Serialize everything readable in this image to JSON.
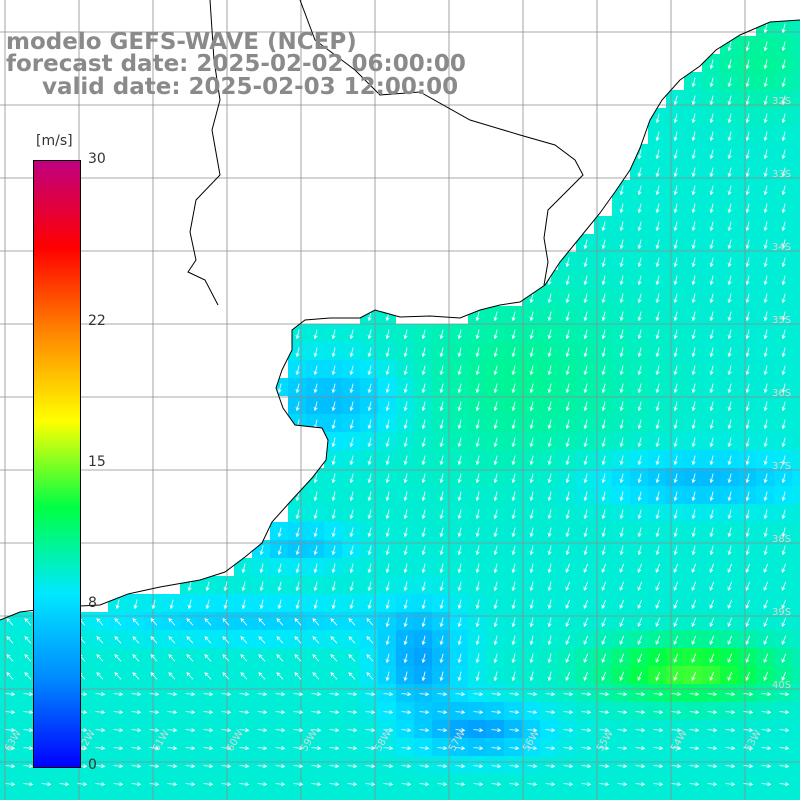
{
  "titles": {
    "line1": "modelo GEFS-WAVE (NCEP)",
    "line2": "forecast date: 2025-02-02 06:00:00",
    "line3": "valid date: 2025-02-03 12:00:00"
  },
  "colorbar": {
    "unit": "[m/s]",
    "ticks": [
      {
        "value": 30,
        "label": "30"
      },
      {
        "value": 22,
        "label": "22"
      },
      {
        "value": 15,
        "label": "15"
      },
      {
        "value": 8,
        "label": "8"
      },
      {
        "value": 0,
        "label": "0"
      }
    ],
    "min": 0,
    "max": 30,
    "colors": [
      "#0000ff",
      "#0088ff",
      "#00e8ff",
      "#00ff44",
      "#ffff00",
      "#ff8800",
      "#ff0000",
      "#c00080"
    ]
  },
  "map": {
    "land_color": "#ffffff",
    "coast_color": "#000000",
    "grid_color": "#8c8c8c",
    "arrow_color": "#ffffff",
    "lat_labels": [
      "32S",
      "33S",
      "34S",
      "35S",
      "36S",
      "37S",
      "38S",
      "39S",
      "40S"
    ],
    "lon_labels": [
      "63W",
      "62W",
      "61W",
      "60W",
      "59W",
      "58W",
      "57W",
      "56W",
      "55W",
      "54W",
      "53W"
    ]
  }
}
